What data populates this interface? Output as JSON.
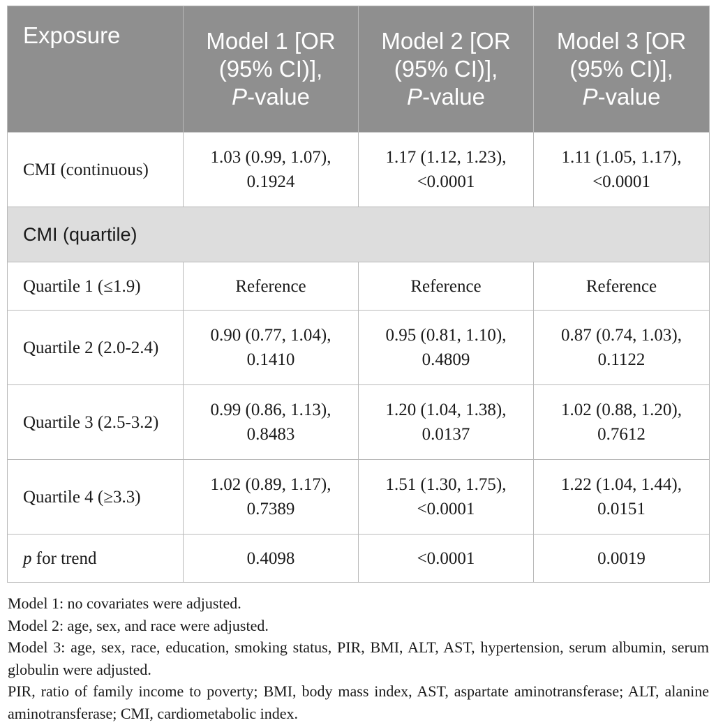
{
  "table": {
    "header": {
      "exposure": "Exposure",
      "models": [
        {
          "prefix": "Model 1 [OR (95% CI)],",
          "p": "P",
          "suffix": "-value"
        },
        {
          "prefix": "Model 2 [OR (95% CI)],",
          "p": "P",
          "suffix": "-value"
        },
        {
          "prefix": "Model 3 [OR (95% CI)],",
          "p": "P",
          "suffix": "-value"
        }
      ]
    },
    "continuous": {
      "label": "CMI (continuous)",
      "cells": [
        "1.03 (0.99, 1.07), 0.1924",
        "1.17 (1.12, 1.23), <0.0001",
        "1.11 (1.05, 1.17), <0.0001"
      ]
    },
    "section_label": "CMI (quartile)",
    "quartiles": [
      {
        "label": "Quartile 1 (≤1.9)",
        "cells": [
          "Reference",
          "Reference",
          "Reference"
        ]
      },
      {
        "label": "Quartile 2 (2.0-2.4)",
        "cells": [
          "0.90 (0.77, 1.04), 0.1410",
          "0.95 (0.81, 1.10), 0.4809",
          "0.87 (0.74, 1.03), 0.1122"
        ]
      },
      {
        "label": "Quartile 3 (2.5-3.2)",
        "cells": [
          "0.99 (0.86, 1.13), 0.8483",
          "1.20 (1.04, 1.38), 0.0137",
          "1.02 (0.88, 1.20), 0.7612"
        ]
      },
      {
        "label": "Quartile 4 (≥3.3)",
        "cells": [
          "1.02 (0.89, 1.17), 0.7389",
          "1.51 (1.30, 1.75), <0.0001",
          "1.22 (1.04, 1.44), 0.0151"
        ]
      }
    ],
    "trend": {
      "p": "p",
      "label_rest": " for trend",
      "cells": [
        "0.4098",
        "<0.0001",
        "0.0019"
      ]
    }
  },
  "notes": [
    "Model 1: no covariates were adjusted.",
    "Model 2: age, sex, and race were adjusted.",
    "Model 3: age, sex, race, education, smoking status, PIR, BMI, ALT, AST, hypertension, serum albumin, serum globulin were adjusted.",
    "PIR, ratio of family income to poverty; BMI, body mass index, AST, aspartate aminotransferase; ALT, alanine aminotransferase; CMI, cardiometabolic index."
  ],
  "colors": {
    "header_bg": "#8f8f8f",
    "section_bg": "#dddddd",
    "border": "#b9b9b9"
  }
}
